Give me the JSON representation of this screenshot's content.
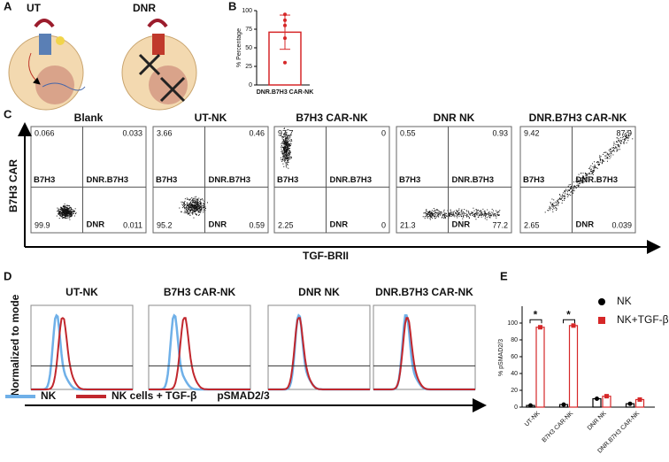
{
  "panel_labels": [
    "A",
    "B",
    "C",
    "D",
    "E"
  ],
  "panel_a": {
    "cells": [
      {
        "title": "UT"
      },
      {
        "title": "DNR"
      }
    ]
  },
  "chart_data": [
    {
      "type": "bar",
      "y_label": "% Percentage",
      "categories": [
        "DNR.B7H3 CAR-NK"
      ],
      "values": [
        71
      ],
      "errors": [
        23
      ],
      "points": [
        95,
        87,
        80,
        63,
        30
      ],
      "color": "#d62728",
      "ylim": [
        0,
        100
      ],
      "yticks": [
        0,
        25,
        50,
        75,
        100
      ]
    },
    {
      "type": "bar",
      "y_label": "% pSMAD2/3",
      "categories": [
        "UT-NK",
        "B7H3 CAR-NK",
        "DNR NK",
        "DNR.B7H3 CAR-NK"
      ],
      "series": [
        {
          "name": "NK",
          "color": "#000000",
          "values": [
            2,
            3,
            10,
            4
          ]
        },
        {
          "name": "NK+TGF-β",
          "color": "#d62728",
          "values": [
            95,
            97,
            13,
            9
          ]
        }
      ],
      "ylim": [
        0,
        120
      ],
      "yticks": [
        0,
        20,
        40,
        60,
        80,
        100
      ],
      "annotations": [
        "*",
        "*"
      ]
    }
  ],
  "panel_c": {
    "y_label": "B7H3 CAR",
    "x_label": "TGF-BRII",
    "quadrant_names": [
      "B7H3",
      "DNR.B7H3",
      "DNR"
    ],
    "plots": [
      {
        "title": "Blank",
        "quadrants": [
          "0.066",
          "0.033",
          "99.9",
          "0.011"
        ]
      },
      {
        "title": "UT-NK",
        "quadrants": [
          "3.66",
          "0.46",
          "95.2",
          "0.59"
        ]
      },
      {
        "title": "B7H3 CAR-NK",
        "quadrants": [
          "97.7",
          "0",
          "2.25",
          "0"
        ]
      },
      {
        "title": "DNR NK",
        "quadrants": [
          "0.55",
          "0.93",
          "21.3",
          "77.2"
        ]
      },
      {
        "title": "DNR.B7H3 CAR-NK",
        "quadrants": [
          "9.42",
          "87.9",
          "2.65",
          "0.039"
        ]
      }
    ]
  },
  "panel_d": {
    "y_label": "Normalized to mode",
    "x_label": "pSMAD2/3",
    "titles": [
      "UT-NK",
      "B7H3 CAR-NK",
      "DNR NK",
      "DNR.B7H3 CAR-NK"
    ],
    "legend": [
      "NK",
      "NK cells + TGF-β"
    ]
  }
}
